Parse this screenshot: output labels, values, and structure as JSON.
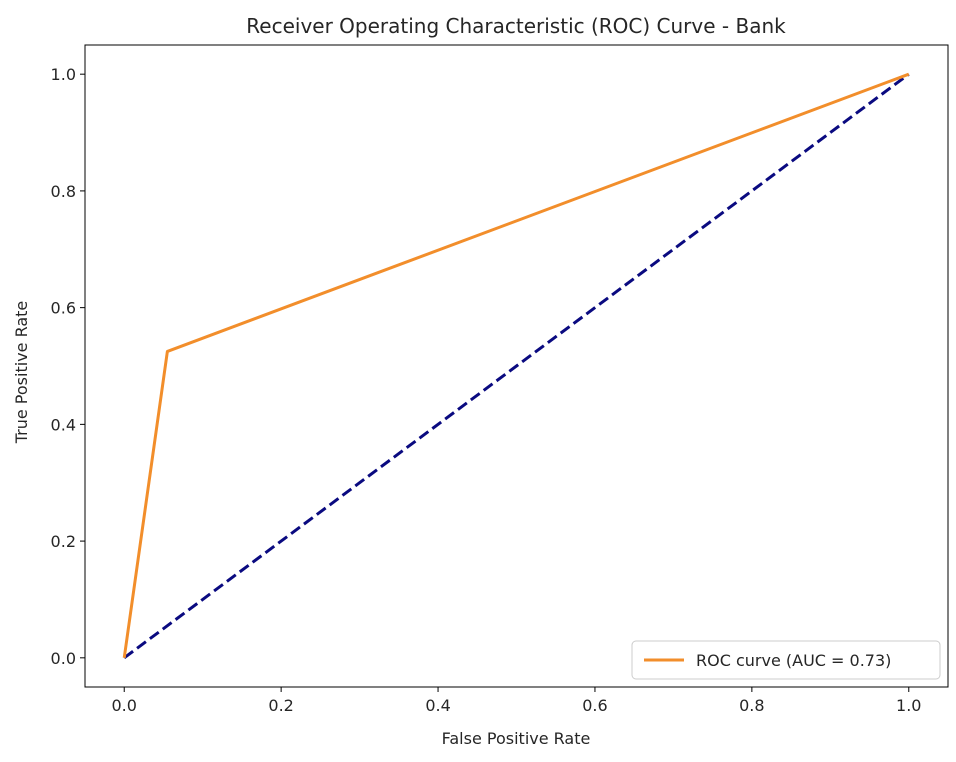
{
  "chart_data": {
    "type": "line",
    "title": "Receiver Operating Characteristic (ROC) Curve - Bank",
    "xlabel": "False Positive Rate",
    "ylabel": "True Positive Rate",
    "xlim": [
      -0.05,
      1.05
    ],
    "ylim": [
      -0.05,
      1.05
    ],
    "xticks": [
      0.0,
      0.2,
      0.4,
      0.6,
      0.8,
      1.0
    ],
    "yticks": [
      0.0,
      0.2,
      0.4,
      0.6,
      0.8,
      1.0
    ],
    "xtick_labels": [
      "0.0",
      "0.2",
      "0.4",
      "0.6",
      "0.8",
      "1.0"
    ],
    "ytick_labels": [
      "0.0",
      "0.2",
      "0.4",
      "0.6",
      "0.8",
      "1.0"
    ],
    "grid": false,
    "legend_position": "lower-right",
    "series": [
      {
        "name": "ROC curve (AUC = 0.73)",
        "color": "#f28e2b",
        "style": "solid",
        "x": [
          0.0,
          0.055,
          1.0
        ],
        "y": [
          0.0,
          0.525,
          1.0
        ]
      },
      {
        "color": "#0a0a80",
        "style": "dashed",
        "x": [
          0.0,
          1.0
        ],
        "y": [
          0.0,
          1.0
        ]
      }
    ]
  }
}
